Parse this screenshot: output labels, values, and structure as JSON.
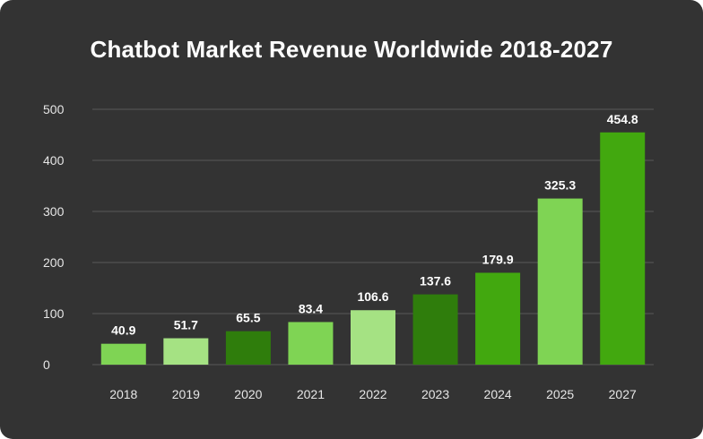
{
  "chart_data": {
    "type": "bar",
    "title": "Chatbot Market Revenue Worldwide 2018-2027",
    "xlabel": "",
    "ylabel": "",
    "categories": [
      "2018",
      "2019",
      "2020",
      "2021",
      "2022",
      "2023",
      "2024",
      "2025",
      "2027"
    ],
    "values": [
      40.9,
      51.7,
      65.5,
      83.4,
      106.6,
      137.6,
      179.9,
      325.3,
      454.8
    ],
    "value_labels": [
      "40.9",
      "51.7",
      "65.5",
      "83.4",
      "106.6",
      "137.6",
      "179.9",
      "325.3",
      "454.8"
    ],
    "ylim": [
      0,
      500
    ],
    "yticks": [
      0,
      100,
      200,
      300,
      400,
      500
    ],
    "ytick_labels": [
      "0",
      "100",
      "200",
      "300",
      "400",
      "500"
    ],
    "grid": true,
    "legend": "none",
    "bar_colors": [
      "#7fd454",
      "#a5e283",
      "#2f7d0c",
      "#7fd454",
      "#a5e283",
      "#2f7d0c",
      "#42a80f",
      "#7fd454",
      "#42a80f"
    ],
    "background": "#333333"
  }
}
